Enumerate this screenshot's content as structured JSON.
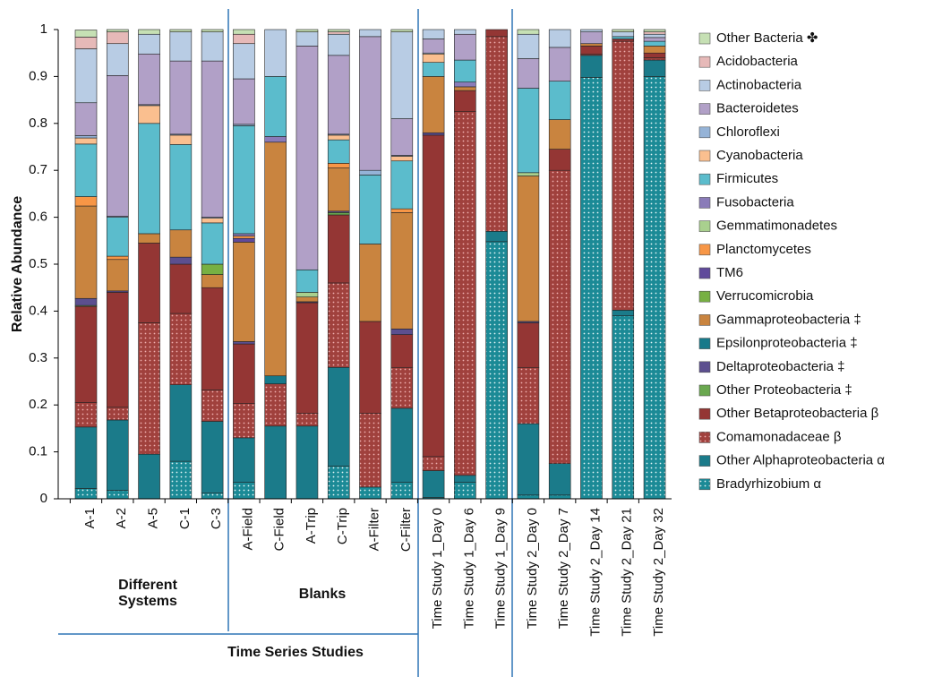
{
  "chart_data": {
    "type": "stacked_bar",
    "y_label": "Relative Abundance",
    "ylim": [
      0,
      1
    ],
    "yticks": [
      0,
      0.1,
      0.2,
      0.3,
      0.4,
      0.5,
      0.6,
      0.7,
      0.8,
      0.9,
      1
    ],
    "grid": false,
    "legend": "right",
    "categories": [
      "A-1",
      "A-2",
      "A-5",
      "C-1",
      "C-3",
      "A-Field",
      "C-Field",
      "A-Trip",
      "C-Trip",
      "A-Filter",
      "C-Filter",
      "Time Study 1_Day 0",
      "Time Study 1_Day 6",
      "Time Study 1_Day 9",
      "Time Study 2_Day 0",
      "Time Study 2_Day 7",
      "Time Study 2_Day 14",
      "Time Study 2_Day 21",
      "Time Study 2_Day 32"
    ],
    "group_labels": [
      "Different Systems",
      "Blanks",
      "Time Series Studies"
    ],
    "series": [
      {
        "name": "Other Bacteria ✤",
        "color": "#c6e0b4",
        "values": [
          0.015,
          0.005,
          0.01,
          0.005,
          0.005,
          0.01,
          0,
          0.005,
          0.005,
          0,
          0.005,
          0,
          0,
          0,
          0.01,
          0,
          0,
          0.005,
          0.005
        ]
      },
      {
        "name": "Acidobacteria",
        "color": "#e6b9b8",
        "values": [
          0.025,
          0.025,
          0,
          0,
          0,
          0.02,
          0,
          0,
          0.005,
          0,
          0,
          0,
          0,
          0,
          0,
          0,
          0,
          0,
          0.005
        ]
      },
      {
        "name": "Actinobacteria",
        "color": "#b8cce4",
        "values": [
          0.115,
          0.068,
          0.042,
          0.062,
          0.062,
          0.075,
          0.1,
          0.03,
          0.045,
          0.015,
          0.185,
          0.02,
          0.01,
          0,
          0.052,
          0.038,
          0.005,
          0.01,
          0.007
        ]
      },
      {
        "name": "Bacteroidetes",
        "color": "#b1a0c7",
        "values": [
          0.07,
          0.3,
          0.108,
          0.156,
          0.333,
          0.097,
          0,
          0.477,
          0.168,
          0.285,
          0.078,
          0.03,
          0.055,
          0,
          0.063,
          0.072,
          0.025,
          0,
          0.008
        ]
      },
      {
        "name": "Chloroflexi",
        "color": "#95b3d7",
        "values": [
          0.005,
          0.002,
          0.002,
          0.002,
          0.002,
          0.003,
          0,
          0,
          0.002,
          0.01,
          0.002,
          0.002,
          0,
          0,
          0,
          0,
          0,
          0,
          0
        ]
      },
      {
        "name": "Cyanobacteria",
        "color": "#fabf8f",
        "values": [
          0.013,
          0,
          0.038,
          0.02,
          0.01,
          0,
          0,
          0,
          0.01,
          0,
          0.01,
          0.018,
          0,
          0,
          0,
          0,
          0,
          0,
          0
        ]
      },
      {
        "name": "Firmicutes",
        "color": "#5bbccc",
        "values": [
          0.112,
          0.083,
          0.235,
          0.182,
          0.088,
          0.23,
          0.128,
          0.048,
          0.05,
          0.147,
          0.102,
          0.03,
          0.047,
          0,
          0.18,
          0.082,
          0,
          0.005,
          0.01
        ]
      },
      {
        "name": "Fusobacteria",
        "color": "#8a7bb8",
        "values": [
          0,
          0,
          0,
          0,
          0,
          0.005,
          0.012,
          0,
          0,
          0,
          0,
          0,
          0.01,
          0,
          0,
          0,
          0,
          0,
          0
        ]
      },
      {
        "name": "Gemmatimonadetes",
        "color": "#a9d08e",
        "values": [
          0,
          0,
          0,
          0,
          0,
          0,
          0,
          0.01,
          0,
          0,
          0,
          0,
          0,
          0,
          0.007,
          0,
          0,
          0,
          0
        ]
      },
      {
        "name": "Planctomycetes",
        "color": "#f79646",
        "values": [
          0.02,
          0.007,
          0,
          0,
          0,
          0.005,
          0,
          0,
          0.01,
          0,
          0.008,
          0,
          0,
          0,
          0,
          0,
          0,
          0,
          0
        ]
      },
      {
        "name": "TM6",
        "color": "#604a9b",
        "values": [
          0,
          0,
          0,
          0,
          0,
          0.008,
          0,
          0,
          0,
          0,
          0,
          0,
          0,
          0,
          0,
          0,
          0,
          0,
          0
        ]
      },
      {
        "name": "Verrucomicrobia",
        "color": "#77b043",
        "values": [
          0,
          0,
          0,
          0,
          0.022,
          0,
          0,
          0,
          0,
          0,
          0,
          0,
          0,
          0,
          0,
          0,
          0,
          0,
          0
        ]
      },
      {
        "name": "Gammaproteobacteria ‡",
        "color": "#c9843f",
        "values": [
          0.197,
          0.067,
          0.02,
          0.058,
          0.028,
          0.212,
          0.498,
          0.01,
          0.092,
          0.165,
          0.248,
          0.12,
          0.008,
          0,
          0.31,
          0.063,
          0.005,
          0,
          0.015
        ]
      },
      {
        "name": "Epsilonproteobacteria ‡",
        "color": "#17798a",
        "values": [
          0,
          0,
          0,
          0,
          0,
          0,
          0.017,
          0,
          0,
          0,
          0,
          0,
          0,
          0,
          0,
          0,
          0,
          0,
          0
        ]
      },
      {
        "name": "Deltaproteobacteria ‡",
        "color": "#5c4f8f",
        "values": [
          0.015,
          0.003,
          0,
          0.015,
          0,
          0.005,
          0,
          0.002,
          0.003,
          0,
          0.012,
          0.005,
          0,
          0,
          0.003,
          0,
          0,
          0,
          0
        ]
      },
      {
        "name": "Other Proteobacteria ‡",
        "color": "#6aa84f",
        "values": [
          0.002,
          0,
          0,
          0,
          0,
          0,
          0,
          0,
          0.005,
          0,
          0,
          0,
          0,
          0,
          0,
          0,
          0,
          0,
          0
        ]
      },
      {
        "name": "Other Betaproteobacteria β",
        "color": "#943634",
        "values": [
          0.205,
          0.245,
          0.17,
          0.105,
          0.218,
          0.127,
          0,
          0.236,
          0.145,
          0.196,
          0.07,
          0.685,
          0.045,
          0.015,
          0.095,
          0.045,
          0.017,
          0.005,
          0.01
        ]
      },
      {
        "name": "Comamonadaceae β",
        "color": "#a0413d",
        "pattern": "dots",
        "values": [
          0.052,
          0.027,
          0.28,
          0.152,
          0.067,
          0.073,
          0.09,
          0.027,
          0.18,
          0.157,
          0.087,
          0.03,
          0.775,
          0.415,
          0.12,
          0.625,
          0.003,
          0.573,
          0.005
        ]
      },
      {
        "name": "Other Alphaproteobacteria α",
        "color": "#1b7b8a",
        "values": [
          0.131,
          0.15,
          0.095,
          0.163,
          0.153,
          0.095,
          0.155,
          0.155,
          0.21,
          0,
          0.158,
          0.057,
          0.015,
          0.022,
          0.152,
          0.067,
          0.047,
          0.012,
          0.035
        ]
      },
      {
        "name": "Bradyrhizobium α",
        "color": "#1b8a96",
        "pattern": "dots",
        "values": [
          0.022,
          0.018,
          0,
          0.08,
          0.012,
          0.035,
          0,
          0,
          0.07,
          0.025,
          0.035,
          0.003,
          0.035,
          0.548,
          0.008,
          0.008,
          0.898,
          0.39,
          0.9
        ]
      }
    ]
  }
}
